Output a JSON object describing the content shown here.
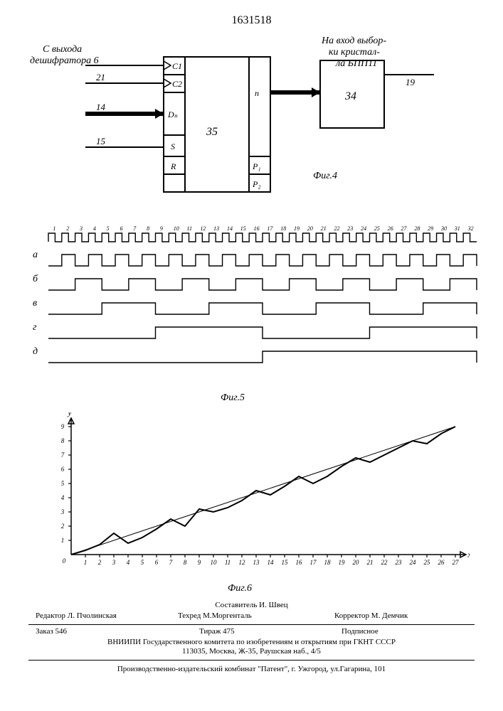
{
  "patent_number": "1631518",
  "fig4": {
    "label_top_left_1": "С выхода",
    "label_top_left_2": "дешифратора 6",
    "label_top_right_1": "На вход выбор-",
    "label_top_right_2": "ки кристал-",
    "label_top_right_3": "ла БПП11",
    "block35": "35",
    "block34": "34",
    "pin_c1": "C1",
    "pin_c2": "C2",
    "pin_dn": "Dₙ",
    "pin_s": "S",
    "pin_r": "R",
    "pin_n": "n",
    "pin_p1": "P₁",
    "pin_p2": "P₂",
    "wire_21": "21",
    "wire_14": "14",
    "wire_15": "15",
    "wire_19": "19",
    "caption": "Фиг.4"
  },
  "fig5": {
    "caption": "Фиг.5",
    "clock_count": 32,
    "row_labels": [
      "а",
      "б",
      "в",
      "г",
      "д"
    ],
    "periods": [
      2,
      4,
      8,
      16,
      32
    ],
    "stroke": "#000000",
    "label_fontsize": 10,
    "clock_label_fontsize": 8
  },
  "fig6": {
    "caption": "Фиг.6",
    "x_max": 27,
    "y_max": 9,
    "y_ticks": [
      0,
      1,
      2,
      3,
      4,
      5,
      6,
      7,
      8,
      9
    ],
    "x_ticks": [
      0,
      1,
      2,
      3,
      4,
      5,
      6,
      7,
      8,
      9,
      10,
      11,
      12,
      13,
      14,
      15,
      16,
      17,
      18,
      19,
      20,
      21,
      22,
      23,
      24,
      25,
      26,
      27
    ],
    "xlabel": "x",
    "ylabel": "y",
    "stroke": "#000000",
    "step_data": [
      {
        "x": 0,
        "y": 0
      },
      {
        "x": 1,
        "y": 0.3
      },
      {
        "x": 2,
        "y": 0.7
      },
      {
        "x": 3,
        "y": 1.5
      },
      {
        "x": 4,
        "y": 0.8
      },
      {
        "x": 5,
        "y": 1.2
      },
      {
        "x": 6,
        "y": 1.8
      },
      {
        "x": 7,
        "y": 2.5
      },
      {
        "x": 8,
        "y": 2.0
      },
      {
        "x": 9,
        "y": 3.2
      },
      {
        "x": 10,
        "y": 3.0
      },
      {
        "x": 11,
        "y": 3.3
      },
      {
        "x": 12,
        "y": 3.8
      },
      {
        "x": 13,
        "y": 4.5
      },
      {
        "x": 14,
        "y": 4.2
      },
      {
        "x": 15,
        "y": 4.8
      },
      {
        "x": 16,
        "y": 5.5
      },
      {
        "x": 17,
        "y": 5.0
      },
      {
        "x": 18,
        "y": 5.5
      },
      {
        "x": 19,
        "y": 6.2
      },
      {
        "x": 20,
        "y": 6.8
      },
      {
        "x": 21,
        "y": 6.5
      },
      {
        "x": 22,
        "y": 7.0
      },
      {
        "x": 23,
        "y": 7.5
      },
      {
        "x": 24,
        "y": 8.0
      },
      {
        "x": 25,
        "y": 7.8
      },
      {
        "x": 26,
        "y": 8.5
      },
      {
        "x": 27,
        "y": 9.0
      }
    ]
  },
  "footer": {
    "compiler": "Составитель И. Швец",
    "editor": "Редактор Л. Пчолинская",
    "techred": "Техред М.Моргенталь",
    "corrector": "Корректор   М. Демчик",
    "order": "Заказ 546",
    "tirage": "Тираж 475",
    "subscription": "Подписное",
    "org1": "ВНИИПИ Государственного комитета по изобретениям и открытиям при ГКНТ СССР",
    "addr1": "113035, Москва, Ж-35, Раушская наб., 4/5",
    "org2": "Производственно-издательский комбинат \"Патент\", г. Ужгород, ул.Гагарина, 101"
  }
}
